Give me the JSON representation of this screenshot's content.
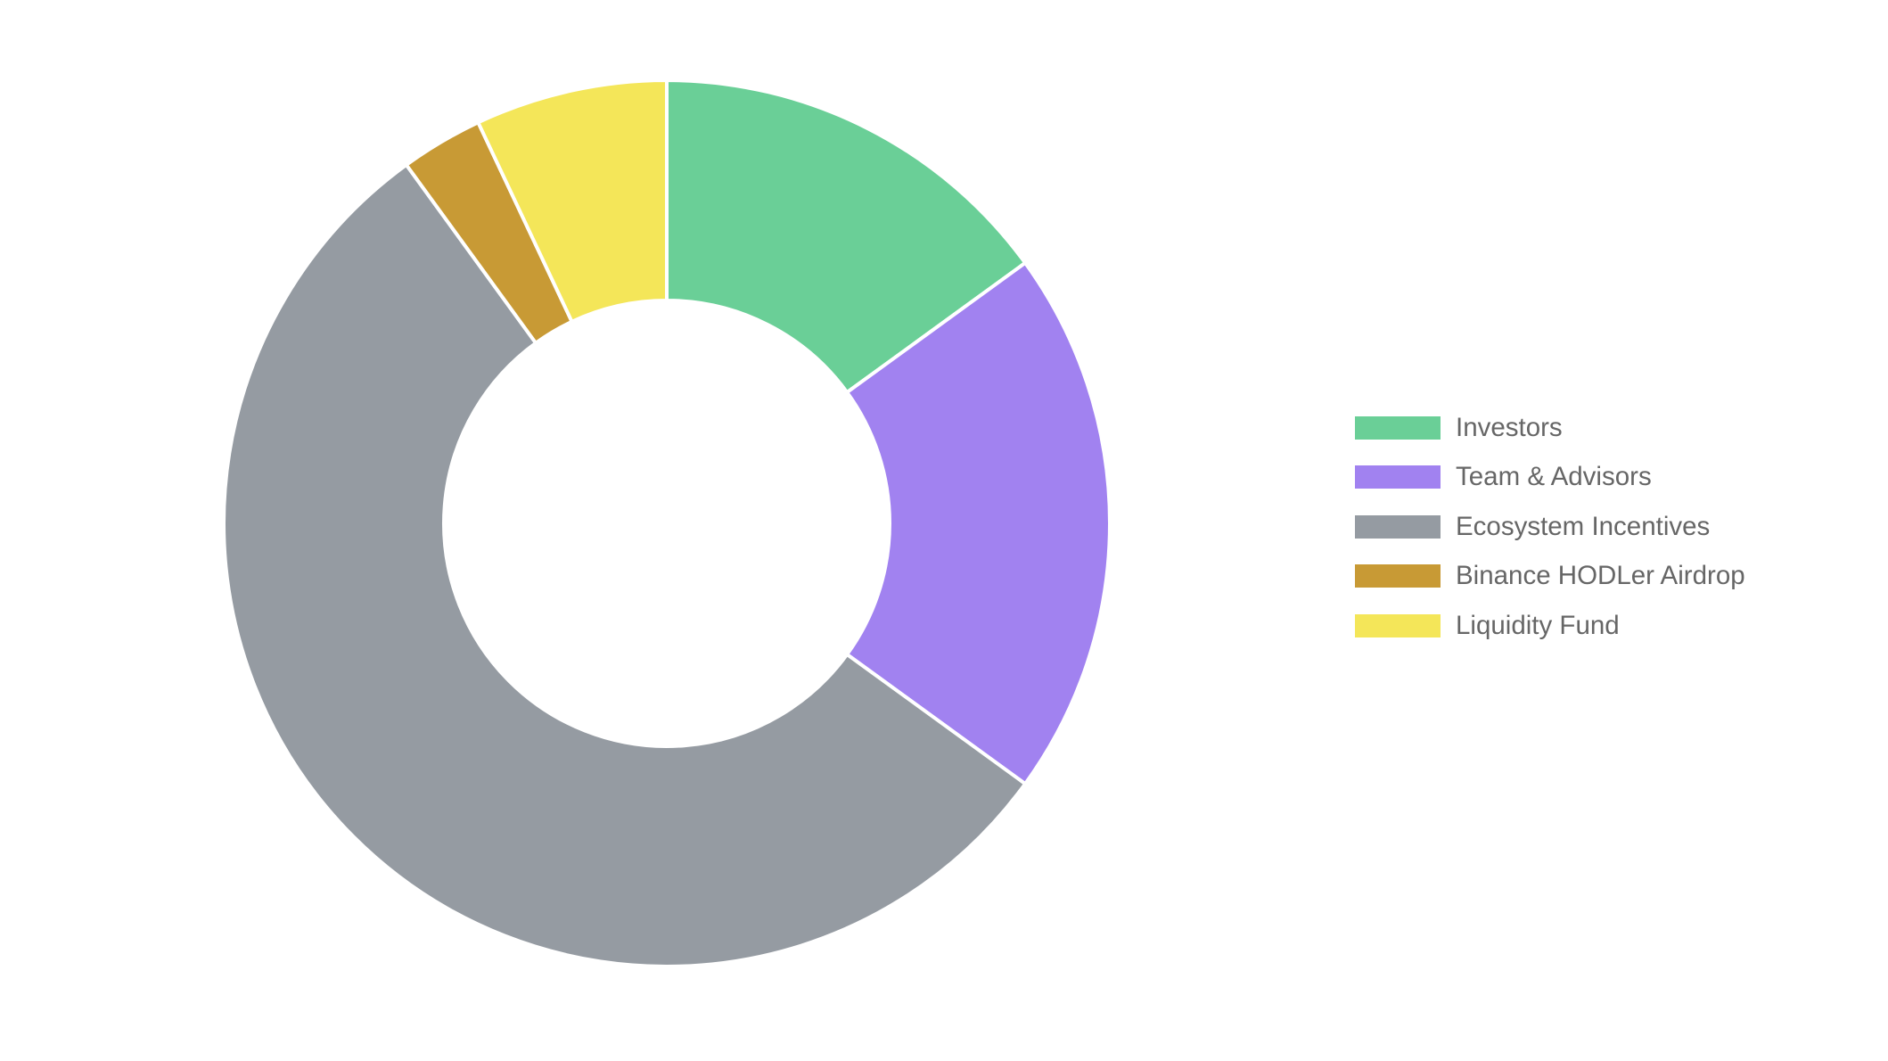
{
  "chart_data": {
    "type": "pie",
    "variant": "donut",
    "categories": [
      "Investors",
      "Team & Advisors",
      "Ecosystem Incentives",
      "Binance HODLer Airdrop",
      "Liquidity Fund"
    ],
    "values": [
      15,
      20,
      55,
      3,
      7
    ],
    "colors": [
      "#6ACF97",
      "#A182F0",
      "#959BA2",
      "#C89A35",
      "#F4E659"
    ],
    "title": "",
    "legend_position": "right"
  }
}
